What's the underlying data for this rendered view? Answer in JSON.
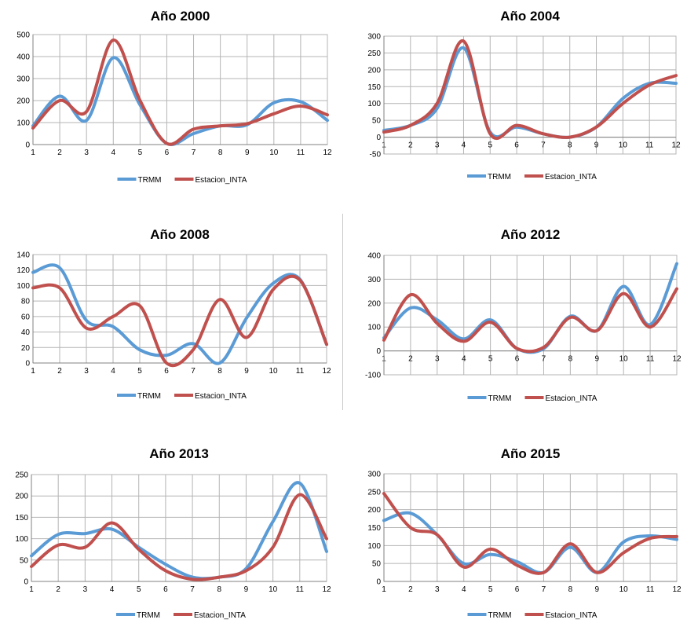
{
  "chart_data": [
    {
      "type": "line",
      "title": "Año 2000",
      "x": [
        1,
        2,
        3,
        4,
        5,
        6,
        7,
        8,
        9,
        10,
        11,
        12
      ],
      "ylim": [
        0,
        500
      ],
      "yticks": [
        0,
        100,
        200,
        300,
        400,
        500
      ],
      "series": [
        {
          "name": "TRMM",
          "values": [
            85,
            220,
            110,
            395,
            180,
            5,
            50,
            85,
            90,
            190,
            195,
            110
          ]
        },
        {
          "name": "Estacion_INTA",
          "values": [
            75,
            200,
            150,
            475,
            200,
            5,
            70,
            85,
            95,
            140,
            175,
            135
          ]
        }
      ],
      "legend": "bottom"
    },
    {
      "type": "line",
      "title": "Año 2004",
      "x": [
        1,
        2,
        3,
        4,
        5,
        6,
        7,
        8,
        9,
        10,
        11,
        12
      ],
      "ylim": [
        -50,
        300
      ],
      "yticks": [
        -50,
        0,
        50,
        100,
        150,
        200,
        250,
        300
      ],
      "series": [
        {
          "name": "TRMM",
          "values": [
            20,
            35,
            85,
            265,
            15,
            30,
            10,
            0,
            30,
            115,
            160,
            160
          ]
        },
        {
          "name": "Estacion_INTA",
          "values": [
            15,
            35,
            100,
            285,
            10,
            35,
            10,
            0,
            30,
            100,
            155,
            183
          ]
        }
      ],
      "legend": "bottom"
    },
    {
      "type": "line",
      "title": "Año 2008",
      "x": [
        1,
        2,
        3,
        4,
        5,
        6,
        7,
        8,
        9,
        10,
        11,
        12
      ],
      "ylim": [
        0,
        140
      ],
      "yticks": [
        0,
        20,
        40,
        60,
        80,
        100,
        120,
        140
      ],
      "series": [
        {
          "name": "TRMM",
          "values": [
            117,
            123,
            55,
            47,
            17,
            10,
            25,
            0,
            58,
            103,
            108,
            24
          ]
        },
        {
          "name": "Estacion_INTA",
          "values": [
            97,
            97,
            45,
            60,
            74,
            0,
            17,
            82,
            33,
            95,
            107,
            24
          ]
        }
      ],
      "legend": "bottom"
    },
    {
      "type": "line",
      "title": "Año 2012",
      "x": [
        1,
        2,
        3,
        4,
        5,
        6,
        7,
        8,
        9,
        10,
        11,
        12
      ],
      "ylim": [
        -100,
        400
      ],
      "yticks": [
        -100,
        0,
        100,
        200,
        300,
        400
      ],
      "series": [
        {
          "name": "TRMM",
          "values": [
            55,
            180,
            130,
            50,
            130,
            10,
            10,
            145,
            85,
            270,
            110,
            365
          ]
        },
        {
          "name": "Estacion_INTA",
          "values": [
            45,
            235,
            115,
            40,
            120,
            10,
            15,
            140,
            85,
            240,
            100,
            260
          ]
        }
      ],
      "legend": "bottom"
    },
    {
      "type": "line",
      "title": "Año 2013",
      "x": [
        1,
        2,
        3,
        4,
        5,
        6,
        7,
        8,
        9,
        10,
        11,
        12
      ],
      "ylim": [
        0,
        250
      ],
      "yticks": [
        0,
        50,
        100,
        150,
        200,
        250
      ],
      "series": [
        {
          "name": "TRMM",
          "values": [
            60,
            110,
            112,
            122,
            80,
            40,
            10,
            10,
            30,
            140,
            230,
            70
          ]
        },
        {
          "name": "Estacion_INTA",
          "values": [
            35,
            85,
            80,
            137,
            75,
            25,
            5,
            10,
            25,
            80,
            203,
            100
          ]
        }
      ],
      "legend": "bottom"
    },
    {
      "type": "line",
      "title": "Año 2015",
      "x": [
        1,
        2,
        3,
        4,
        5,
        6,
        7,
        8,
        9,
        10,
        11,
        12
      ],
      "ylim": [
        0,
        300
      ],
      "yticks": [
        0,
        50,
        100,
        150,
        200,
        250,
        300
      ],
      "series": [
        {
          "name": "TRMM",
          "values": [
            170,
            190,
            130,
            50,
            75,
            55,
            25,
            95,
            25,
            110,
            127,
            117
          ]
        },
        {
          "name": "Estacion_INTA",
          "values": [
            245,
            150,
            130,
            40,
            90,
            45,
            25,
            105,
            25,
            80,
            120,
            125
          ]
        }
      ],
      "legend": "bottom"
    }
  ],
  "colors": {
    "TRMM": "#5b9bd5",
    "Estacion_INTA": "#c0504d",
    "grid": "#b4b4b4",
    "axis": "#808080"
  }
}
